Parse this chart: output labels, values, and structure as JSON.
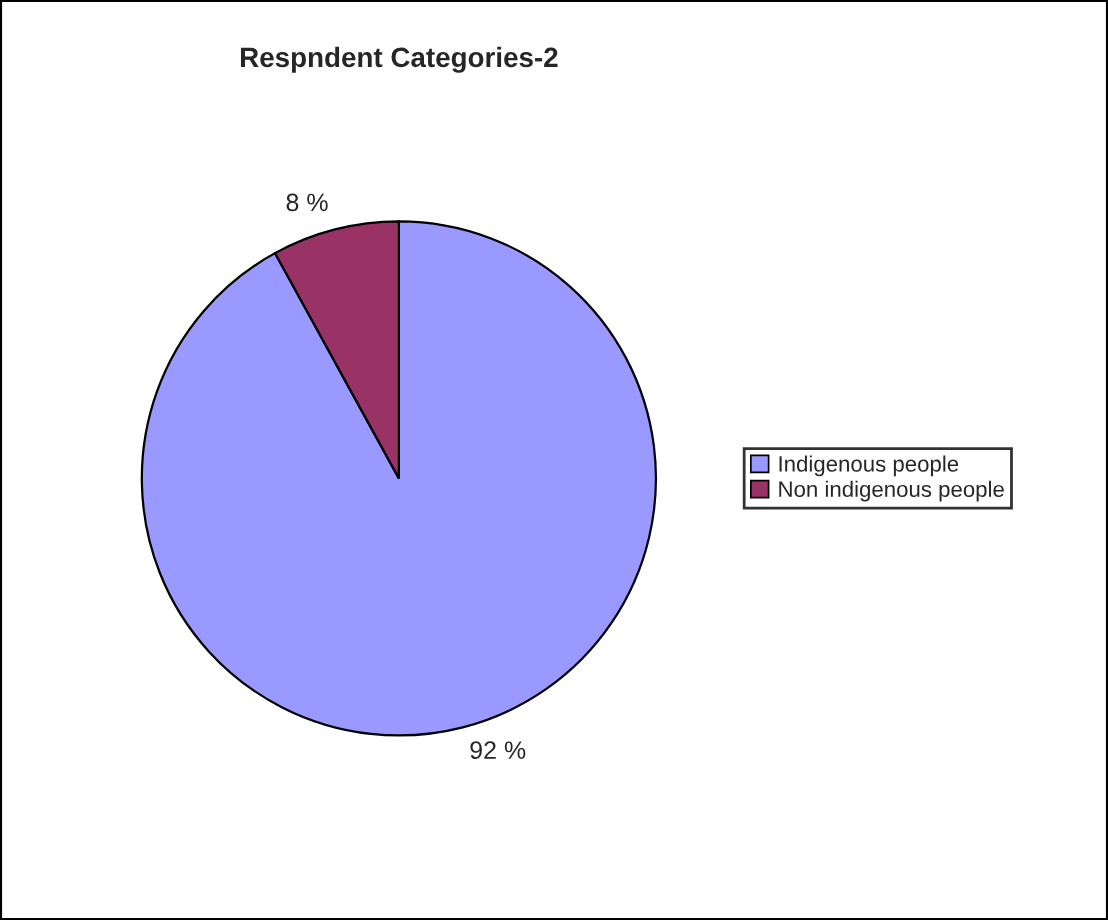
{
  "chart_data": {
    "type": "pie",
    "title": "Respndent Categories-2",
    "categories": [
      "Indigenous people",
      "Non indigenous people"
    ],
    "values": [
      92,
      8
    ],
    "colors": [
      "#9999ff",
      "#993366"
    ],
    "value_labels": [
      "92 %",
      "8 %"
    ],
    "legend": "right"
  }
}
